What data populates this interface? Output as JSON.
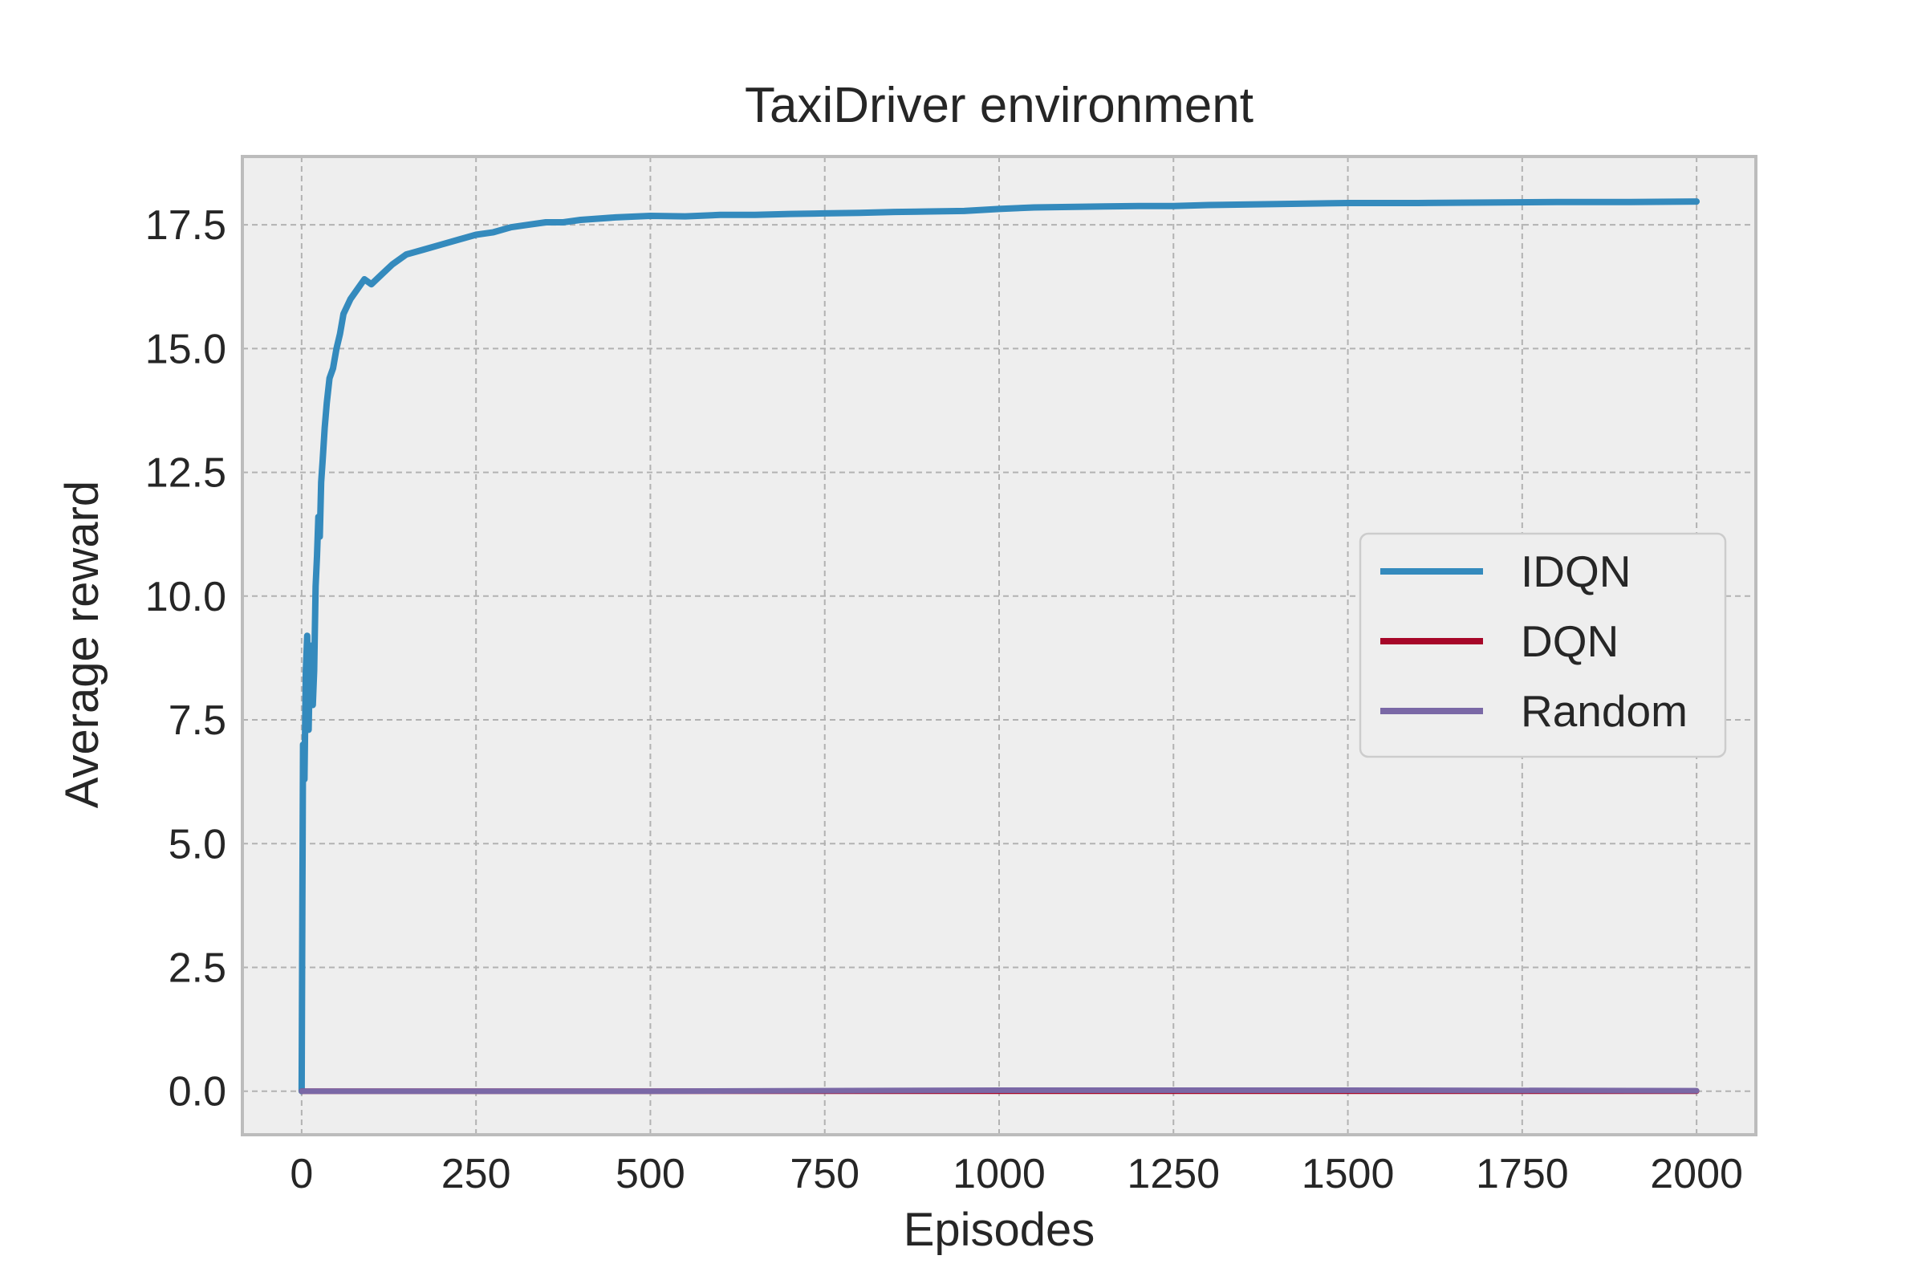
{
  "chart_data": {
    "type": "line",
    "title": "TaxiDriver environment",
    "xlabel": "Episodes",
    "ylabel": "Average reward",
    "xlim": [
      -85,
      2085
    ],
    "ylim": [
      -0.88,
      18.88
    ],
    "xticks": [
      0,
      250,
      500,
      750,
      1000,
      1250,
      1500,
      1750,
      2000
    ],
    "xtick_labels": [
      "0",
      "250",
      "500",
      "750",
      "1000",
      "1250",
      "1500",
      "1750",
      "2000"
    ],
    "yticks": [
      0.0,
      2.5,
      5.0,
      7.5,
      10.0,
      12.5,
      15.0,
      17.5
    ],
    "ytick_labels": [
      "0.0",
      "2.5",
      "5.0",
      "7.5",
      "10.0",
      "12.5",
      "15.0",
      "17.5"
    ],
    "grid": true,
    "legend_position": "center-right",
    "series": [
      {
        "name": "IDQN",
        "color": "#348ABD",
        "x": [
          0,
          1,
          2,
          4,
          6,
          8,
          10,
          12,
          14,
          16,
          18,
          20,
          22,
          24,
          26,
          28,
          30,
          33,
          36,
          40,
          45,
          50,
          55,
          60,
          70,
          80,
          90,
          100,
          115,
          130,
          150,
          175,
          200,
          225,
          250,
          275,
          300,
          325,
          350,
          375,
          400,
          450,
          500,
          550,
          600,
          650,
          700,
          750,
          800,
          850,
          900,
          950,
          1000,
          1050,
          1100,
          1150,
          1200,
          1250,
          1300,
          1400,
          1500,
          1600,
          1700,
          1800,
          1900,
          2000
        ],
        "y": [
          0.0,
          3.5,
          7.0,
          6.3,
          8.5,
          9.2,
          7.3,
          8.8,
          9.0,
          7.8,
          8.5,
          10.2,
          10.8,
          11.6,
          11.2,
          12.3,
          12.7,
          13.4,
          13.9,
          14.4,
          14.6,
          15.0,
          15.3,
          15.7,
          16.0,
          16.2,
          16.4,
          16.3,
          16.5,
          16.7,
          16.9,
          17.0,
          17.1,
          17.2,
          17.3,
          17.35,
          17.45,
          17.5,
          17.55,
          17.55,
          17.6,
          17.65,
          17.68,
          17.67,
          17.7,
          17.7,
          17.72,
          17.73,
          17.74,
          17.76,
          17.77,
          17.78,
          17.82,
          17.85,
          17.86,
          17.87,
          17.88,
          17.88,
          17.9,
          17.92,
          17.94,
          17.94,
          17.95,
          17.96,
          17.96,
          17.97
        ]
      },
      {
        "name": "DQN",
        "color": "#A60628",
        "x": [
          0,
          500,
          1000,
          1500,
          2000
        ],
        "y": [
          0.0,
          0.0,
          0.0,
          0.0,
          0.0
        ]
      },
      {
        "name": "Random",
        "color": "#7A68A6",
        "x": [
          0,
          500,
          1000,
          1500,
          2000
        ],
        "y": [
          0.0,
          0.0,
          0.02,
          0.02,
          0.01
        ]
      }
    ]
  }
}
